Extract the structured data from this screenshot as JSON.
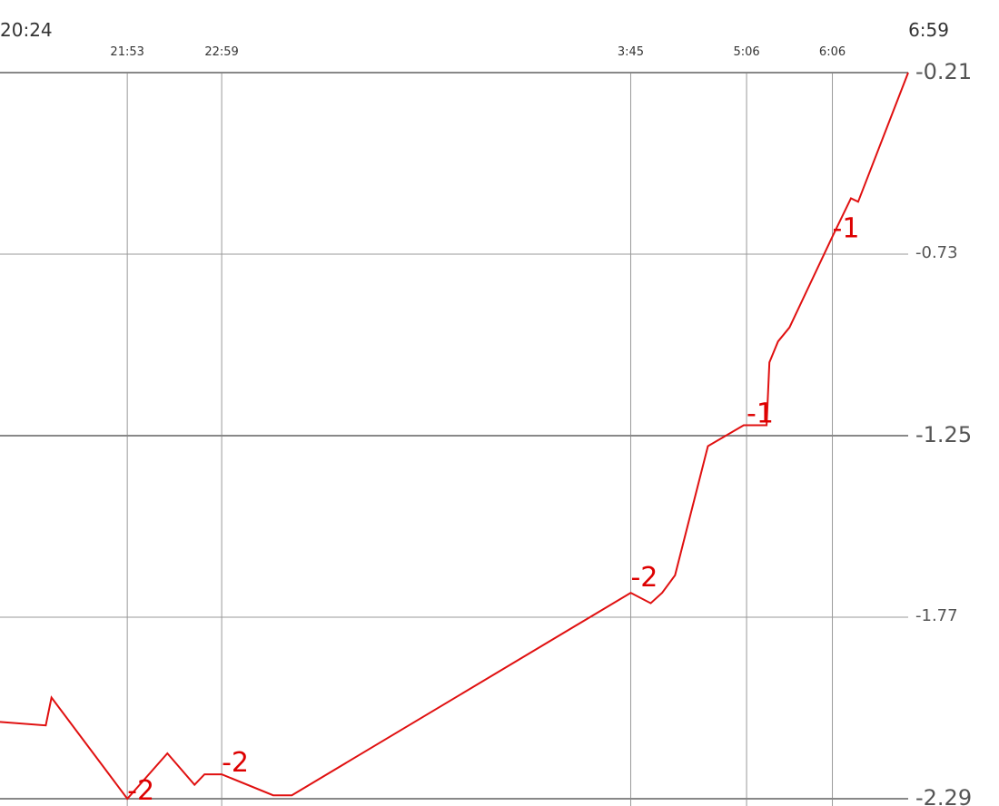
{
  "chart_data": {
    "type": "line",
    "title": "",
    "xlabel": "",
    "ylabel": "",
    "grid": true,
    "colors": {
      "series": "#e01010",
      "grid_major": "#888888",
      "grid_minor": "#999999",
      "text": "#333333"
    },
    "x_ticks": [
      {
        "label": "20:24",
        "t": 0,
        "major": true
      },
      {
        "label": "21:53",
        "t": 89,
        "major": false
      },
      {
        "label": "22:59",
        "t": 155,
        "major": false
      },
      {
        "label": "3:45",
        "t": 441,
        "major": false
      },
      {
        "label": "5:06",
        "t": 522,
        "major": false
      },
      {
        "label": "6:06",
        "t": 582,
        "major": false
      },
      {
        "label": "6:59",
        "t": 635,
        "major": true
      }
    ],
    "y_ticks": [
      {
        "label": "-0.21",
        "value": -0.21,
        "major": true
      },
      {
        "label": "-0.73",
        "value": -0.73,
        "major": false
      },
      {
        "label": "-1.25",
        "value": -1.25,
        "major": true
      },
      {
        "label": "-1.77",
        "value": -1.77,
        "major": false
      },
      {
        "label": "-2.29",
        "value": -2.29,
        "major": true
      }
    ],
    "ylim": [
      -2.29,
      -0.21
    ],
    "series": [
      {
        "x": [
          0,
          32,
          36,
          89,
          117,
          136,
          143,
          155,
          191,
          204,
          441,
          455,
          463,
          472,
          495,
          520,
          536,
          538,
          544,
          552,
          582,
          595,
          600,
          635
        ],
        "y": [
          -2.07,
          -2.08,
          -2.0,
          -2.29,
          -2.16,
          -2.25,
          -2.22,
          -2.22,
          -2.28,
          -2.28,
          -1.7,
          -1.73,
          -1.7,
          -1.65,
          -1.28,
          -1.22,
          -1.22,
          -1.04,
          -0.98,
          -0.94,
          -0.68,
          -0.57,
          -0.58,
          -0.21
        ]
      }
    ],
    "annotations": [
      {
        "text": "-2",
        "x": 89,
        "y": -2.27
      },
      {
        "text": "-2",
        "x": 155,
        "y": -2.19
      },
      {
        "text": "-2",
        "x": 441,
        "y": -1.66
      },
      {
        "text": "-1",
        "x": 522,
        "y": -1.19
      },
      {
        "text": "-1",
        "x": 582,
        "y": -0.66
      }
    ]
  }
}
